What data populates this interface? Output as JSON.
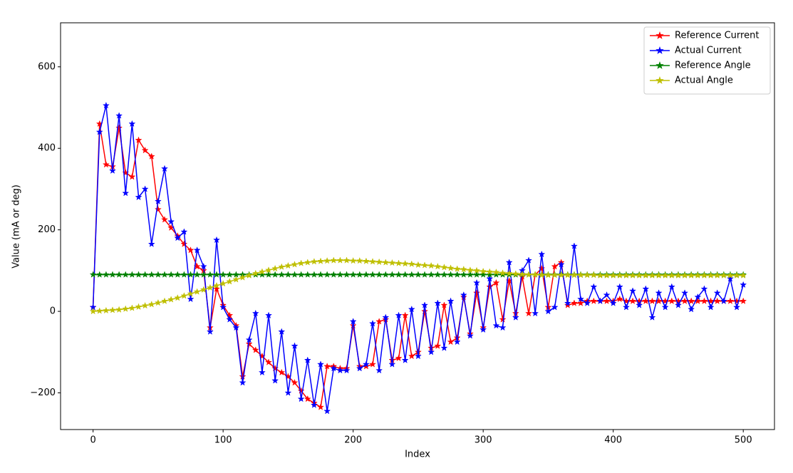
{
  "chart_data": {
    "type": "line",
    "xlabel": "Index",
    "ylabel": "Value (mA or deg)",
    "xlim": [
      -25,
      524
    ],
    "ylim": [
      -290,
      708
    ],
    "xticks": [
      0,
      100,
      200,
      300,
      400,
      500
    ],
    "yticks": [
      {
        "value": -200,
        "label": "−200"
      },
      0,
      200,
      400,
      600
    ],
    "grid": false,
    "legend": "upper right",
    "marker": "star",
    "x": [
      0,
      5,
      10,
      15,
      20,
      25,
      30,
      35,
      40,
      45,
      50,
      55,
      60,
      65,
      70,
      75,
      80,
      85,
      90,
      95,
      100,
      105,
      110,
      115,
      120,
      125,
      130,
      135,
      140,
      145,
      150,
      155,
      160,
      165,
      170,
      175,
      180,
      185,
      190,
      195,
      200,
      205,
      210,
      215,
      220,
      225,
      230,
      235,
      240,
      245,
      250,
      255,
      260,
      265,
      270,
      275,
      280,
      285,
      290,
      295,
      300,
      305,
      310,
      315,
      320,
      325,
      330,
      335,
      340,
      345,
      350,
      355,
      360,
      365,
      370,
      375,
      380,
      385,
      390,
      395,
      400,
      405,
      410,
      415,
      420,
      425,
      430,
      435,
      440,
      445,
      450,
      455,
      460,
      465,
      470,
      475,
      480,
      485,
      490,
      495,
      500
    ],
    "series": [
      {
        "name": "Reference Current",
        "color": "#ff0000",
        "values": [
          10,
          460,
          360,
          355,
          450,
          340,
          330,
          420,
          395,
          380,
          250,
          225,
          205,
          185,
          165,
          150,
          110,
          100,
          -40,
          55,
          15,
          -10,
          -35,
          -160,
          -80,
          -95,
          -110,
          -125,
          -140,
          -150,
          -160,
          -175,
          -195,
          -215,
          -225,
          -235,
          -135,
          -135,
          -140,
          -140,
          -35,
          -135,
          -135,
          -130,
          -25,
          -20,
          -120,
          -115,
          -10,
          -110,
          -100,
          0,
          -90,
          -85,
          15,
          -75,
          -65,
          35,
          -55,
          45,
          -40,
          60,
          70,
          -20,
          75,
          -5,
          85,
          -5,
          90,
          105,
          10,
          110,
          120,
          15,
          20,
          20,
          25,
          25,
          25,
          25,
          25,
          30,
          25,
          25,
          25,
          25,
          25,
          25,
          25,
          25,
          25,
          25,
          25,
          25,
          25,
          25,
          25,
          25,
          25,
          25,
          25
        ]
      },
      {
        "name": "Actual Current",
        "color": "#0000ff",
        "values": [
          10,
          440,
          505,
          345,
          480,
          290,
          460,
          280,
          300,
          165,
          270,
          350,
          220,
          180,
          195,
          30,
          150,
          110,
          -50,
          175,
          10,
          -20,
          -40,
          -175,
          -70,
          -5,
          -150,
          -10,
          -170,
          -50,
          -200,
          -85,
          -215,
          -120,
          -230,
          -130,
          -245,
          -140,
          -145,
          -145,
          -25,
          -140,
          -130,
          -30,
          -145,
          -15,
          -130,
          -10,
          -120,
          5,
          -110,
          15,
          -100,
          20,
          -90,
          25,
          -75,
          40,
          -60,
          70,
          -45,
          80,
          -35,
          -40,
          120,
          -15,
          100,
          125,
          -5,
          140,
          0,
          10,
          115,
          20,
          160,
          30,
          20,
          60,
          25,
          40,
          20,
          60,
          10,
          50,
          15,
          55,
          -15,
          45,
          10,
          60,
          15,
          45,
          5,
          35,
          55,
          10,
          45,
          25,
          80,
          10,
          65
        ]
      },
      {
        "name": "Reference Angle",
        "color": "#008000",
        "values": [
          90,
          90,
          90,
          90,
          90,
          90,
          90,
          90,
          90,
          90,
          90,
          90,
          90,
          90,
          90,
          90,
          90,
          90,
          90,
          90,
          90,
          90,
          90,
          90,
          90,
          90,
          90,
          90,
          90,
          90,
          90,
          90,
          90,
          90,
          90,
          90,
          90,
          90,
          90,
          90,
          90,
          90,
          90,
          90,
          90,
          90,
          90,
          90,
          90,
          90,
          90,
          90,
          90,
          90,
          90,
          90,
          90,
          90,
          90,
          90,
          90,
          90,
          90,
          90,
          90,
          90,
          90,
          90,
          90,
          90,
          90,
          90,
          90,
          90,
          90,
          90,
          90,
          90,
          90,
          90,
          90,
          90,
          90,
          90,
          90,
          90,
          90,
          90,
          90,
          90,
          90,
          90,
          90,
          90,
          90,
          90,
          90,
          90,
          90,
          90,
          90
        ]
      },
      {
        "name": "Actual Angle",
        "color": "#bfbf00",
        "values": [
          0,
          1,
          2,
          3,
          4,
          6,
          8,
          11,
          14,
          17,
          21,
          25,
          29,
          33,
          38,
          43,
          48,
          53,
          58,
          63,
          68,
          73,
          78,
          83,
          88,
          93,
          97,
          101,
          105,
          109,
          112,
          115,
          118,
          120,
          122,
          123,
          124,
          125,
          125,
          125,
          124,
          124,
          123,
          122,
          121,
          120,
          119,
          118,
          117,
          116,
          114,
          113,
          112,
          110,
          108,
          106,
          104,
          103,
          101,
          100,
          98,
          97,
          96,
          94,
          93,
          92,
          91,
          90,
          90,
          89,
          89,
          89,
          89,
          89,
          89,
          89,
          89,
          89,
          88,
          88,
          88,
          88,
          88,
          88,
          88,
          88,
          88,
          88,
          88,
          88,
          88,
          88,
          88,
          88,
          88,
          88,
          88,
          88,
          88,
          88,
          88
        ]
      }
    ]
  }
}
